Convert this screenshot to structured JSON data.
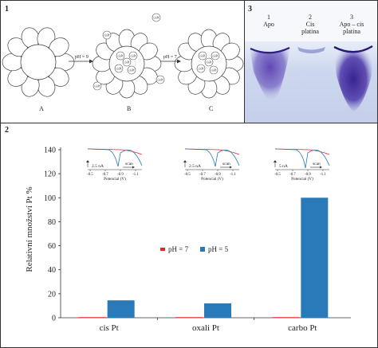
{
  "panel1": {
    "number": "1",
    "arrow1_label": "pH = 9",
    "arrow2_label": "pH = 7",
    "stage_labels": [
      "A",
      "B",
      "C"
    ],
    "particle_label": "cisPt"
  },
  "panel3": {
    "number": "3",
    "lanes": [
      {
        "num": "1",
        "line1": "Apo",
        "line2": ""
      },
      {
        "num": "2",
        "line1": "Cis",
        "line2": "platina"
      },
      {
        "num": "3",
        "line1": "Apo – cis",
        "line2": "platina"
      }
    ]
  },
  "panel2": {
    "number": "2",
    "insets": [
      {
        "scale_label": "2.5 nA",
        "scan_label": "scan",
        "xlabel": "Potencial (V)",
        "ticks": [
          "-0.5",
          "-0.7",
          "-0.9",
          "-1.1"
        ]
      },
      {
        "scale_label": "2.5 nA",
        "scan_label": "scan",
        "xlabel": "Potencial (V)",
        "ticks": [
          "-0.5",
          "-0.7",
          "-0.9",
          "-1.1"
        ]
      },
      {
        "scale_label": "5 nA",
        "scan_label": "scan",
        "xlabel": "Potencial (V)",
        "ticks": [
          "-0.5",
          "-0.7",
          "-0.9",
          "-1.1"
        ]
      }
    ]
  },
  "colors": {
    "ph7": "#e8262a",
    "ph5": "#2a7ab9"
  },
  "chart_data": {
    "type": "bar",
    "categories": [
      "cis Pt",
      "oxali Pt",
      "carbo Pt"
    ],
    "series": [
      {
        "name": "pH = 7",
        "values": [
          0.5,
          0.5,
          0.5
        ]
      },
      {
        "name": "pH = 5",
        "values": [
          14.5,
          12,
          100
        ]
      }
    ],
    "ylabel": "Relativní množství Pt %",
    "ylim": [
      0,
      140
    ],
    "yticks": [
      0,
      20,
      40,
      60,
      80,
      100,
      120,
      140
    ],
    "legend": "center"
  }
}
